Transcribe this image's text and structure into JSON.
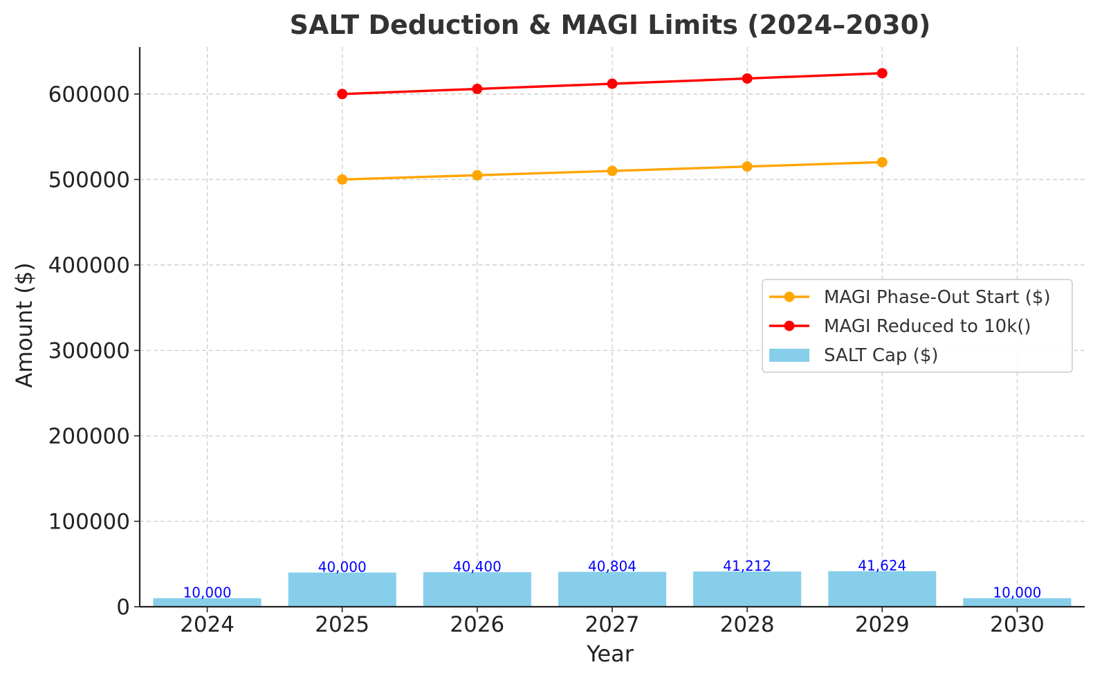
{
  "chart_data": {
    "type": "bar",
    "title": "SALT Deduction & MAGI Limits (2024–2030)",
    "xlabel": "Year",
    "ylabel": "Amount ($)",
    "categories": [
      "2024",
      "2025",
      "2026",
      "2027",
      "2028",
      "2029",
      "2030"
    ],
    "ylim": [
      0,
      655000
    ],
    "yticks": [
      0,
      100000,
      200000,
      300000,
      400000,
      500000,
      600000
    ],
    "ytick_labels": [
      "0",
      "100000",
      "200000",
      "300000",
      "400000",
      "500000",
      "600000"
    ],
    "grid": true,
    "legend_position": "center-right",
    "bars": {
      "name": "SALT Cap ($)",
      "color": "#87ceeb",
      "values": [
        10000,
        40000,
        40400,
        40804,
        41212,
        41624,
        10000
      ],
      "labels": [
        "10,000",
        "40,000",
        "40,400",
        "40,804",
        "41,212",
        "41,624",
        "10,000"
      ],
      "label_color": "#0000ff"
    },
    "series": [
      {
        "name": "MAGI Phase-Out Start ($)",
        "type": "line",
        "color": "#ffa500",
        "x": [
          "2025",
          "2026",
          "2027",
          "2028",
          "2029"
        ],
        "values": [
          500000,
          505000,
          510050,
          515150,
          520302
        ]
      },
      {
        "name": "MAGI Reduced to 10k()",
        "type": "line",
        "color": "#ff0000",
        "x": [
          "2025",
          "2026",
          "2027",
          "2028",
          "2029"
        ],
        "values": [
          600000,
          606000,
          612060,
          618181,
          624362
        ]
      }
    ]
  }
}
